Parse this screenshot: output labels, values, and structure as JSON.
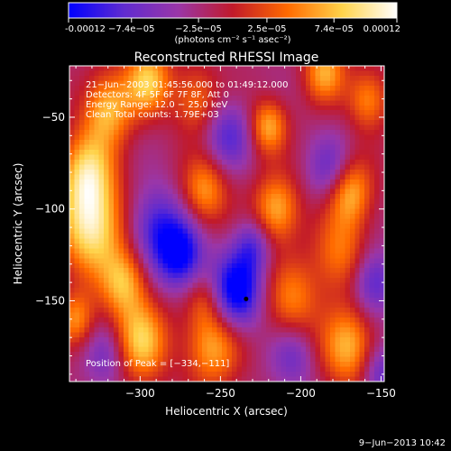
{
  "colorbar": {
    "ticks": [
      "-0.00012",
      "−7.4e−05",
      "−2.5e−05",
      "2.5e−05",
      "7.4e−05",
      "0.00012"
    ],
    "tick_values": [
      -0.00012,
      -7.4e-05,
      -2.5e-05,
      2.5e-05,
      7.4e-05,
      0.00012
    ],
    "range": [
      -0.00012,
      0.00012
    ],
    "colors": [
      "#0000ff",
      "#5f2bd0",
      "#9a36a8",
      "#c11a2a",
      "#ff6a00",
      "#ffd34a",
      "#ffffff"
    ],
    "unit_text": "(photons cm⁻² s⁻¹ asec⁻²)"
  },
  "chart_data": {
    "type": "heatmap",
    "title": "Reconstructed RHESSI Image",
    "xlabel": "Heliocentric X (arcsec)",
    "ylabel": "Heliocentric Y (arcsec)",
    "xlim": [
      -344,
      -148
    ],
    "ylim": [
      -194,
      -22
    ],
    "x_ticks": [
      -300,
      -250,
      -200,
      -150
    ],
    "x_tick_labels": [
      "−300",
      "−250",
      "−200",
      "−150"
    ],
    "y_ticks": [
      -50,
      -100,
      -150
    ],
    "y_tick_labels": [
      "−50",
      "−100",
      "−150"
    ],
    "annotations": [
      "21−Jun−2003 01:45:56.000 to 01:49:12.000",
      "Detectors: 4F 5F 6F 7F 8F, Att 0",
      "Energy Range: 12.0 − 25.0 keV",
      "Clean    Total counts: 1.79E+03"
    ],
    "peak_label": "Position of Peak = [−334,−111]",
    "peak": [
      -334,
      -111
    ],
    "marker": [
      -234,
      -149
    ],
    "blobs": [
      {
        "x": -330,
        "y": -110,
        "v": 1.0,
        "s": 14
      },
      {
        "x": -333,
        "y": -80,
        "v": 0.8,
        "s": 12
      },
      {
        "x": -320,
        "y": -45,
        "v": 0.75,
        "s": 11
      },
      {
        "x": -310,
        "y": -140,
        "v": 0.7,
        "s": 10
      },
      {
        "x": -295,
        "y": -30,
        "v": 0.8,
        "s": 10
      },
      {
        "x": -290,
        "y": -110,
        "v": -0.6,
        "s": 12
      },
      {
        "x": -275,
        "y": -125,
        "v": -0.85,
        "s": 10
      },
      {
        "x": -300,
        "y": -172,
        "v": 0.85,
        "s": 12
      },
      {
        "x": -255,
        "y": -175,
        "v": 0.7,
        "s": 12
      },
      {
        "x": -265,
        "y": -40,
        "v": 0.5,
        "s": 10
      },
      {
        "x": -260,
        "y": -90,
        "v": 0.65,
        "s": 10
      },
      {
        "x": -245,
        "y": -60,
        "v": -0.5,
        "s": 10
      },
      {
        "x": -240,
        "y": -145,
        "v": -0.95,
        "s": 11
      },
      {
        "x": -230,
        "y": -120,
        "v": -0.5,
        "s": 8
      },
      {
        "x": -220,
        "y": -55,
        "v": 0.7,
        "s": 8
      },
      {
        "x": -215,
        "y": -100,
        "v": 0.75,
        "s": 10
      },
      {
        "x": -205,
        "y": -150,
        "v": 0.55,
        "s": 12
      },
      {
        "x": -205,
        "y": -180,
        "v": -0.4,
        "s": 10
      },
      {
        "x": -185,
        "y": -25,
        "v": 0.7,
        "s": 9
      },
      {
        "x": -180,
        "y": -80,
        "v": -0.55,
        "s": 10
      },
      {
        "x": -175,
        "y": -125,
        "v": 0.55,
        "s": 12
      },
      {
        "x": -170,
        "y": -90,
        "v": 0.85,
        "s": 10
      },
      {
        "x": -170,
        "y": -175,
        "v": 0.75,
        "s": 12
      },
      {
        "x": -158,
        "y": -40,
        "v": 0.6,
        "s": 9
      },
      {
        "x": -155,
        "y": -140,
        "v": -0.6,
        "s": 10
      },
      {
        "x": -150,
        "y": -190,
        "v": -0.5,
        "s": 9
      },
      {
        "x": -320,
        "y": -180,
        "v": -0.4,
        "s": 10
      },
      {
        "x": -260,
        "y": -150,
        "v": 0.3,
        "s": 8
      },
      {
        "x": -340,
        "y": -160,
        "v": 0.6,
        "s": 8
      }
    ]
  },
  "footer": {
    "date": "9−Jun−2013 10:42"
  }
}
